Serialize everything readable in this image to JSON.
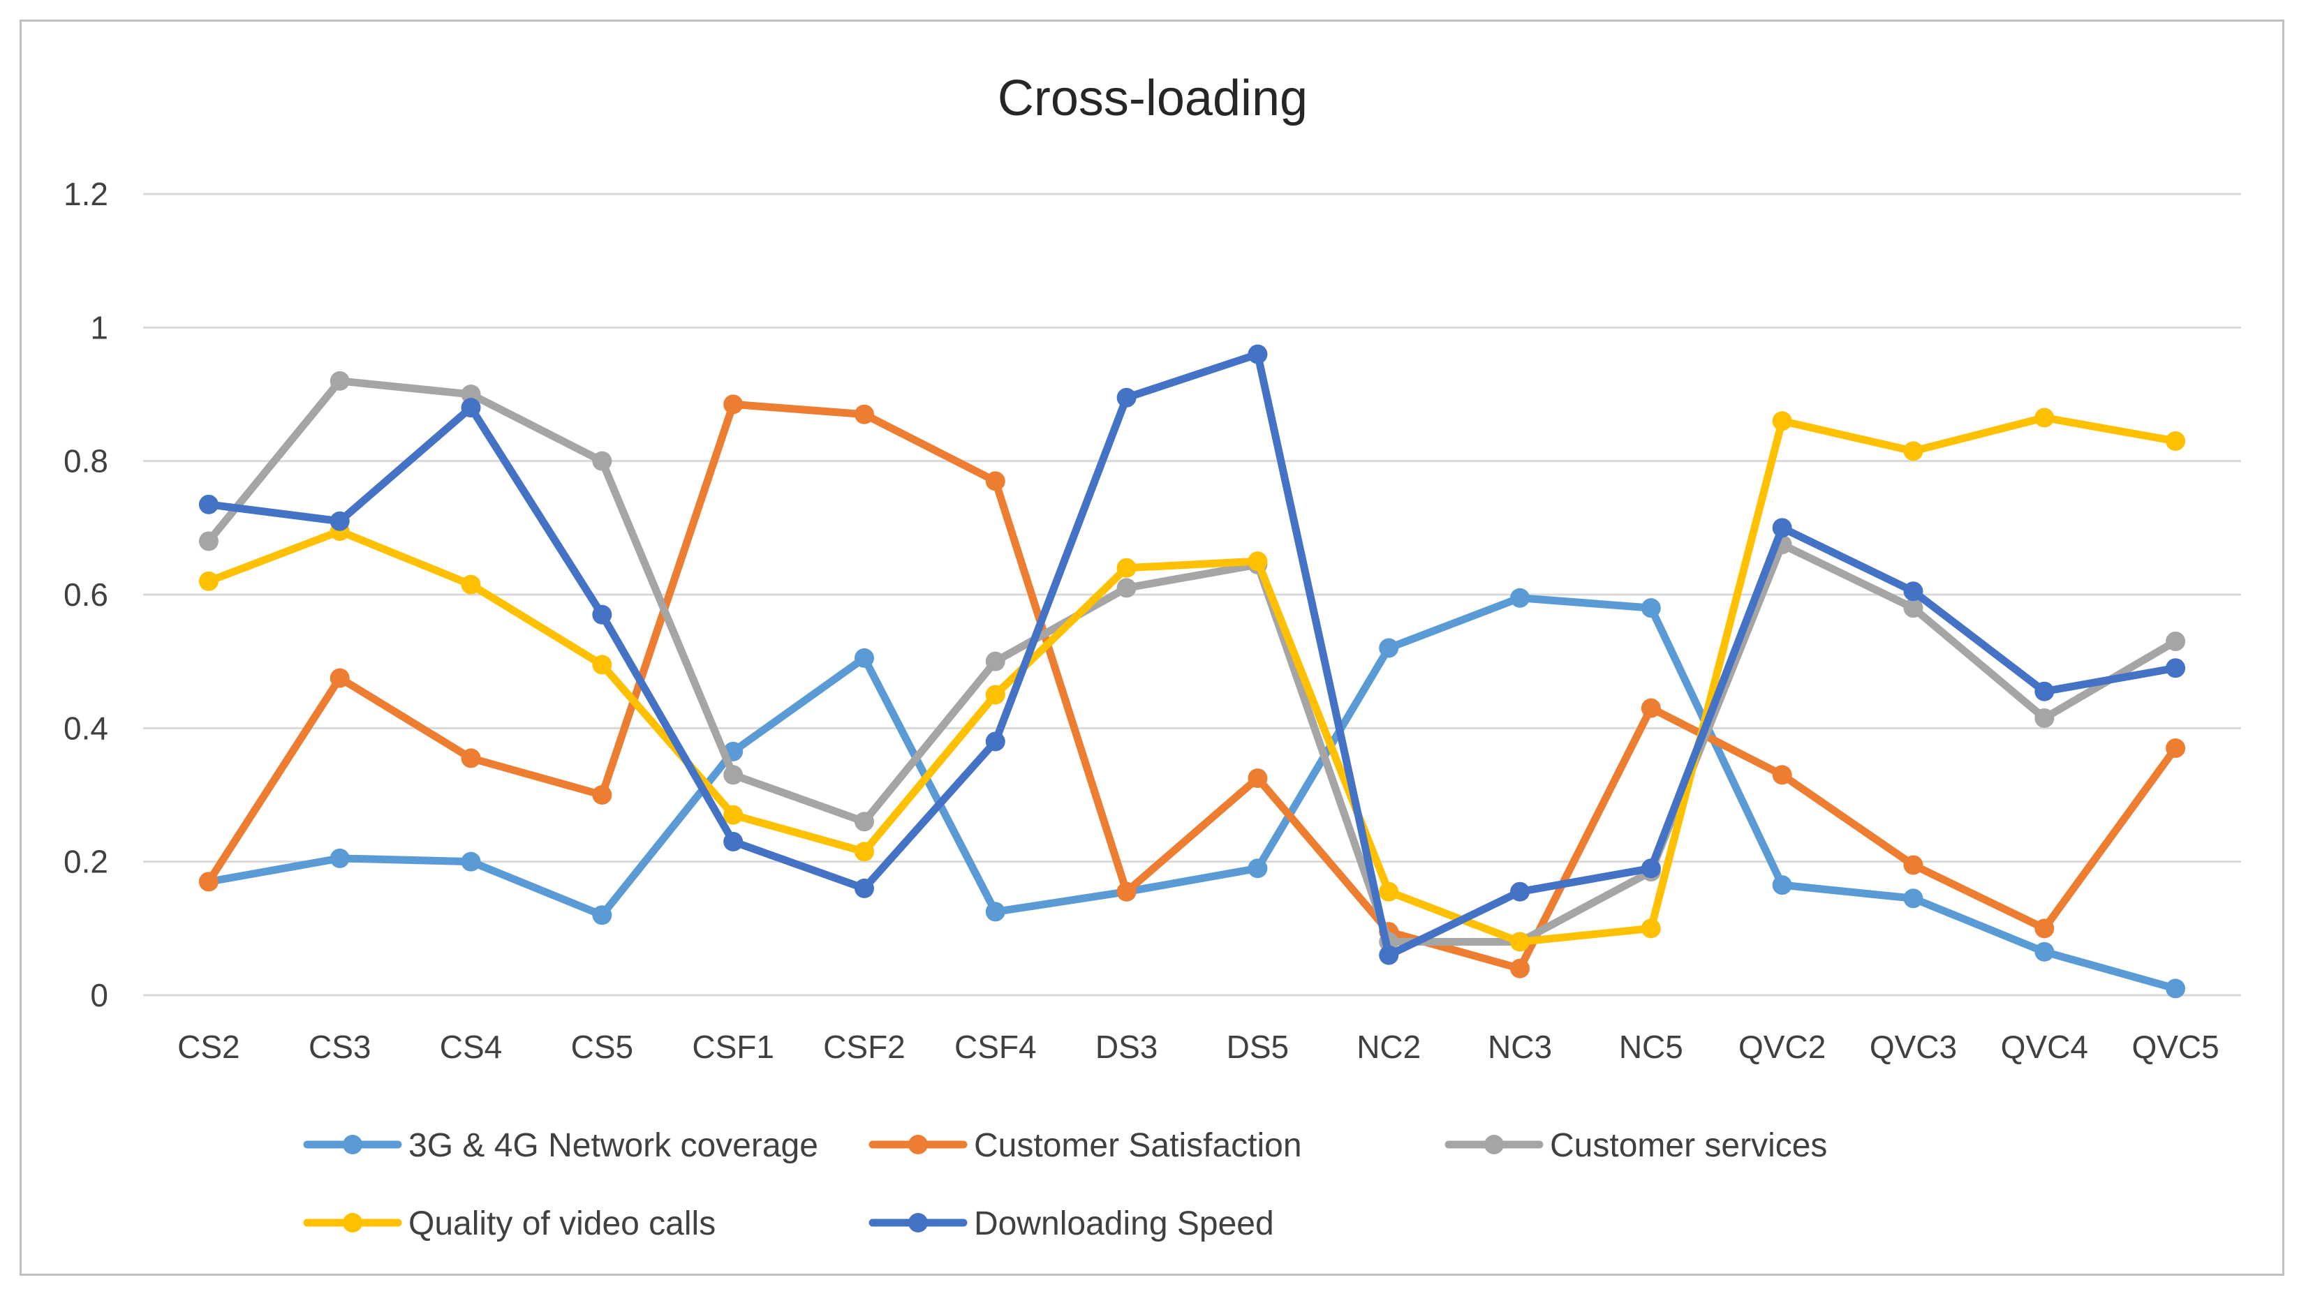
{
  "chart_data": {
    "type": "line",
    "title": "Cross-loading",
    "xlabel": "",
    "ylabel": "",
    "ylim": [
      0,
      1.2
    ],
    "yticks": [
      0,
      0.2,
      0.4,
      0.6,
      0.8,
      1,
      1.2
    ],
    "ytick_labels": [
      "0",
      "0.2",
      "0.4",
      "0.6",
      "0.8",
      "1",
      "1.2"
    ],
    "grid": true,
    "legend_position": "bottom",
    "categories": [
      "CS2",
      "CS3",
      "CS4",
      "CS5",
      "CSF1",
      "CSF2",
      "CSF4",
      "DS3",
      "DS5",
      "NC2",
      "NC3",
      "NC5",
      "QVC2",
      "QVC3",
      "QVC4",
      "QVC5"
    ],
    "series": [
      {
        "name": "3G & 4G Network coverage",
        "color": "#5B9BD5",
        "values": [
          0.17,
          0.205,
          0.2,
          0.12,
          0.365,
          0.505,
          0.125,
          0.155,
          0.19,
          0.52,
          0.595,
          0.58,
          0.165,
          0.145,
          0.065,
          0.01
        ]
      },
      {
        "name": "Customer Satisfaction",
        "color": "#ED7D31",
        "values": [
          0.17,
          0.475,
          0.355,
          0.3,
          0.885,
          0.87,
          0.77,
          0.155,
          0.325,
          0.095,
          0.04,
          0.43,
          0.33,
          0.195,
          0.1,
          0.37
        ]
      },
      {
        "name": "Customer services",
        "color": "#A5A5A5",
        "values": [
          0.68,
          0.92,
          0.9,
          0.8,
          0.33,
          0.26,
          0.5,
          0.61,
          0.645,
          0.08,
          0.08,
          0.185,
          0.675,
          0.58,
          0.415,
          0.53
        ]
      },
      {
        "name": "Quality of video calls",
        "color": "#FFC000",
        "values": [
          0.62,
          0.695,
          0.615,
          0.495,
          0.27,
          0.215,
          0.45,
          0.64,
          0.65,
          0.155,
          0.08,
          0.1,
          0.86,
          0.815,
          0.865,
          0.83
        ]
      },
      {
        "name": "Downloading Speed",
        "color": "#4472C4",
        "values": [
          0.735,
          0.71,
          0.88,
          0.57,
          0.23,
          0.16,
          0.38,
          0.895,
          0.96,
          0.06,
          0.155,
          0.19,
          0.7,
          0.605,
          0.455,
          0.49
        ]
      }
    ]
  }
}
